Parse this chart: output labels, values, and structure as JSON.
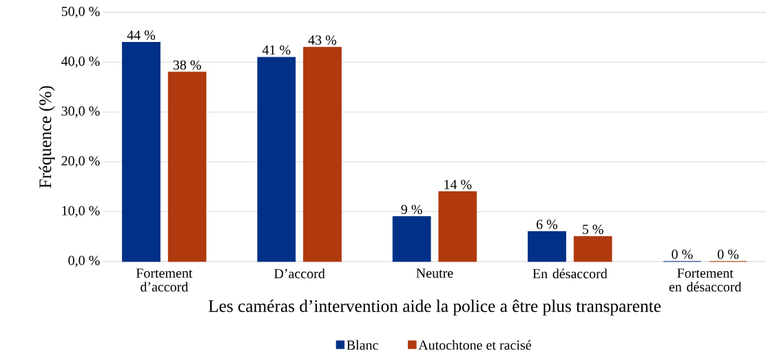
{
  "chart_data": {
    "type": "bar",
    "categories": [
      "Fortement d’accord",
      "D’accord",
      "Neutre",
      "En désaccord",
      "Fortement en désaccord"
    ],
    "series": [
      {
        "name": "Blanc",
        "color": "#003087",
        "values": [
          44,
          41,
          9,
          6,
          0
        ],
        "value_labels": [
          "44 %",
          "41 %",
          "9 %",
          "6 %",
          "0 %"
        ]
      },
      {
        "name": "Autochtone et racisé",
        "color": "#b0390e",
        "values": [
          38,
          43,
          14,
          5,
          0
        ],
        "value_labels": [
          "38 %",
          "43 %",
          "14 %",
          "5 %",
          "0 %"
        ]
      }
    ],
    "xlabel": "Les caméras d’intervention aide la police a être plus transparente",
    "ylabel": "Fréquence (%)",
    "ylim": [
      0,
      50
    ],
    "yticks": [
      {
        "value": 0,
        "label": "0,0 %"
      },
      {
        "value": 10,
        "label": "10,0 %"
      },
      {
        "value": 20,
        "label": "20,0 %"
      },
      {
        "value": 30,
        "label": "30,0 %"
      },
      {
        "value": 40,
        "label": "40,0 %"
      },
      {
        "value": 50,
        "label": "50,0 %"
      }
    ],
    "grid": "y",
    "legend": "bottom"
  }
}
